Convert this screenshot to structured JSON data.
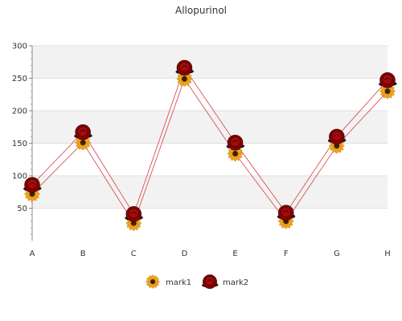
{
  "chart_data": {
    "type": "line",
    "title": "Allopurinol",
    "xlabel": "",
    "ylabel": "",
    "categories": [
      "A",
      "B",
      "C",
      "D",
      "E",
      "F",
      "G",
      "H"
    ],
    "ylim": [
      0,
      300
    ],
    "yticks": [
      50,
      100,
      150,
      200,
      250,
      300
    ],
    "grid": true,
    "legend": "bottom-center",
    "series": [
      {
        "name": "mark1",
        "values": [
          72,
          151,
          27,
          249,
          134,
          30,
          146,
          230
        ],
        "color": "#f5a623",
        "line_color": "#d9534f",
        "marker": "sunflower-icon"
      },
      {
        "name": "mark2",
        "values": [
          86,
          167,
          41,
          266,
          151,
          43,
          160,
          247
        ],
        "color": "#8b0000",
        "line_color": "#d9534f",
        "marker": "rose-icon"
      }
    ]
  }
}
